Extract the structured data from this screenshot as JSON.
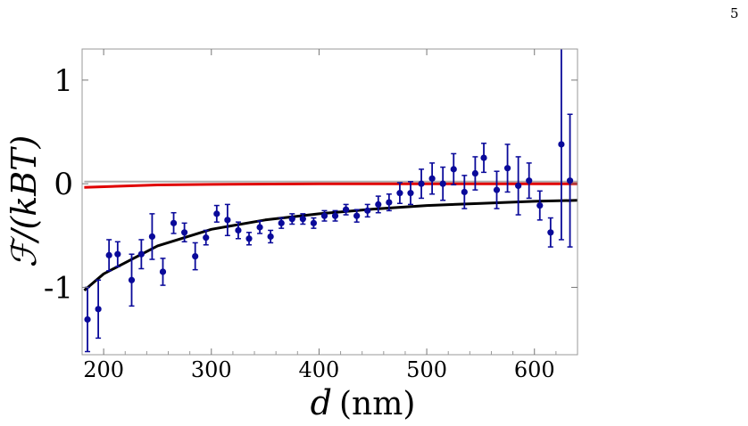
{
  "page_number": "5",
  "chart_data": {
    "type": "scatter",
    "xlabel_var": "d",
    "xlabel_unit": "(nm)",
    "ylabel": "ℱ/(kBT)",
    "xlim": [
      180,
      640
    ],
    "ylim": [
      -1.65,
      1.3
    ],
    "xticks": [
      200,
      300,
      400,
      500,
      600
    ],
    "yticks": [
      1,
      0,
      -1
    ],
    "grid": false,
    "colors": {
      "points": "#0a0a9a",
      "fit_black": "#000000",
      "fit_red": "#e00000",
      "zero_line": "#b0b0b0"
    },
    "series": [
      {
        "marker": "circle-with-errorbars",
        "x": [
          185,
          195,
          205,
          213,
          226,
          235,
          245,
          255,
          265,
          275,
          285,
          295,
          305,
          315,
          325,
          335,
          345,
          355,
          365,
          375,
          385,
          395,
          405,
          415,
          425,
          435,
          445,
          455,
          465,
          475,
          485,
          495,
          505,
          515,
          525,
          535,
          545,
          553,
          565,
          575,
          585,
          595,
          605,
          615,
          625,
          633
        ],
        "y": [
          -1.31,
          -1.21,
          -0.69,
          -0.68,
          -0.93,
          -0.68,
          -0.51,
          -0.85,
          -0.38,
          -0.47,
          -0.7,
          -0.52,
          -0.29,
          -0.35,
          -0.45,
          -0.53,
          -0.42,
          -0.51,
          -0.38,
          -0.34,
          -0.34,
          -0.38,
          -0.31,
          -0.31,
          -0.25,
          -0.31,
          -0.26,
          -0.2,
          -0.18,
          -0.09,
          -0.09,
          0.0,
          0.05,
          0.0,
          0.14,
          -0.08,
          0.1,
          0.25,
          -0.06,
          0.15,
          -0.02,
          0.03,
          -0.21,
          -0.47,
          0.38,
          0.03
        ],
        "err": [
          0.31,
          0.28,
          0.15,
          0.12,
          0.25,
          0.14,
          0.22,
          0.13,
          0.1,
          0.09,
          0.13,
          0.07,
          0.08,
          0.15,
          0.08,
          0.06,
          0.06,
          0.06,
          0.05,
          0.05,
          0.05,
          0.05,
          0.05,
          0.05,
          0.05,
          0.06,
          0.06,
          0.08,
          0.08,
          0.1,
          0.11,
          0.14,
          0.15,
          0.16,
          0.15,
          0.16,
          0.16,
          0.14,
          0.18,
          0.23,
          0.28,
          0.17,
          0.14,
          0.14,
          0.92,
          0.64
        ]
      }
    ],
    "curves": {
      "black": {
        "x": [
          182,
          200,
          250,
          300,
          350,
          400,
          450,
          500,
          550,
          600,
          640
        ],
        "y": [
          -1.03,
          -0.87,
          -0.6,
          -0.44,
          -0.35,
          -0.29,
          -0.245,
          -0.21,
          -0.19,
          -0.17,
          -0.16
        ]
      },
      "red": {
        "x": [
          182,
          250,
          300,
          400,
          500,
          640
        ],
        "y": [
          -0.035,
          -0.012,
          -0.006,
          0.0,
          0.0,
          0.0
        ]
      },
      "gray_zero": {
        "x": [
          182,
          640
        ],
        "y": [
          0.02,
          0.02
        ]
      }
    }
  }
}
